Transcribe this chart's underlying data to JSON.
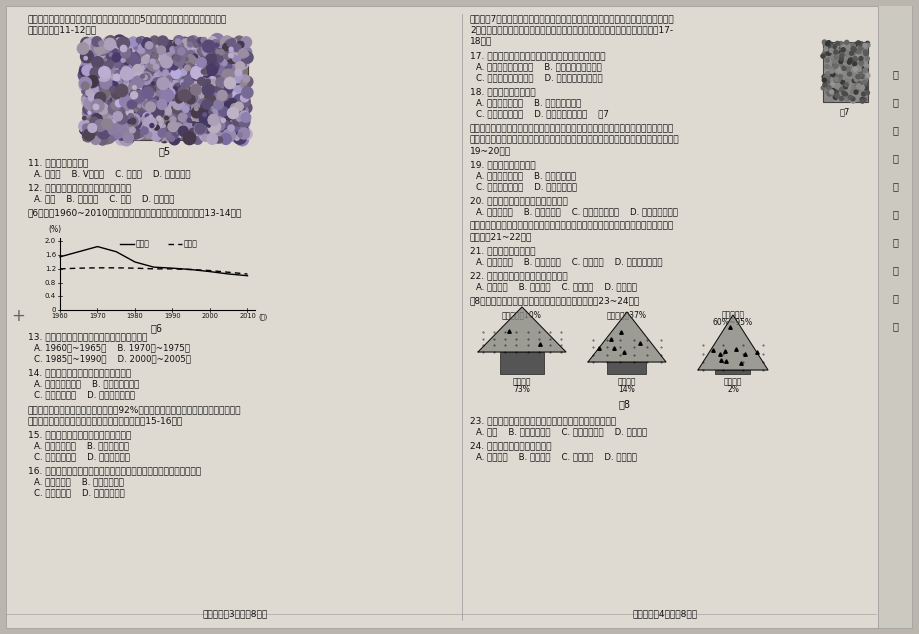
{
  "page_bg": "#d8d4cc",
  "paper_bg": "#e8e4dc",
  "text_color": "#2a2a2a",
  "left_column": {
    "top_text": [
      "野外考察是发现和解决地理问题的重要方法。图5为某同学野外考察中拍摄的岩石照",
      "片，请图完成11-12题。"
    ],
    "fig5_label": "图5",
    "q11": "11. 图示砾石滩多见于",
    "q11_options": [
      "A. 河源地    B. V型河谷    C. 河漫滩    D. 河流入海口"
    ],
    "q12": "12. 参与塑造砾石滩的水循环环节主要是",
    "q12_options": [
      "A. 降水    B. 地表径流    C. 下渗    D. 地下径流"
    ],
    "fig6_intro": "图6为某国1960~2010年人口出生率和死亡率变化图，读图完成13-14题。",
    "birth_rate_x": [
      1960,
      1965,
      1970,
      1975,
      1980,
      1985,
      1990,
      1995,
      2000,
      2005,
      2010
    ],
    "birth_rate_y": [
      1.55,
      1.7,
      1.85,
      1.7,
      1.4,
      1.25,
      1.22,
      1.18,
      1.12,
      1.05,
      1.0
    ],
    "death_rate_x": [
      1960,
      1965,
      1970,
      1975,
      1980,
      1985,
      1990,
      1995,
      2000,
      2005,
      2010
    ],
    "death_rate_y": [
      1.2,
      1.22,
      1.23,
      1.23,
      1.22,
      1.2,
      1.2,
      1.18,
      1.15,
      1.1,
      1.05
    ],
    "q13": "13. 下列时段中，该国人口自然增长率最高的是",
    "q13_options": [
      "A. 1960年~1965年    B. 1970年~1975年",
      "C. 1985年~1990年    D. 2000年~2005年"
    ],
    "q14": "14. 近年来，该国面临的主要人口问题是",
    "q14_options": [
      "A. 人口就业压力大    B. 城市人口比重大",
      "C. 人口迁出量大    D. 人口老龄化严重"
    ],
    "thailand_text": [
      "泰国是世界天然橡胶主要生产国之一，92%的橡胶产品出口，中国和美国均是橡胶消费",
      "大国，每年都大量进口天然橡胶及制品，据此完成15-16题。"
    ],
    "q15": "15. 与美国相比，泰国种植橡胶的优势是",
    "q15_options": [
      "A. 地形平坦广阔    B. 种植技术先进",
      "C. 气候条件优越    D. 机械化水平高"
    ],
    "q16": "16. 相较于销往美国，泰国橡胶加工企业将产品销往中国的优势条件是",
    "q16_options": [
      "A. 运输成本低    B. 市场需求量大",
      "C. 市场售价高    D. 信息通达度高"
    ],
    "footer": "地理试卷第3页（兲8页）"
  },
  "right_column": {
    "top_text": [
      "香橼（图7）口感独特，具有一定的食疗价值。产于官川火山深处某乡的红香橼，每年",
      "2月抢鲜登陆北京市场，新鲜香橼保鲜期短，加工后可供售一年以上。据此完成17-",
      "18题。"
    ],
    "q17": "17. 某乡红香橼抢鲜登陆北京市场，主要的运输方式是",
    "q17_options": [
      "A. 公路运输和馓路运输    B. 公路运输和航空运输",
      "C. 水路运输和公路运输    D. 水路运输和馓路运输"
    ],
    "q18": "18. 红香橼加工企业属于",
    "q18_options": [
      "A. 原料导向型工业    B. 技术导向型工业",
      "C. 市场导向型工业    D. 劳动力导向型工业    图7"
    ],
    "huawei_text": [
      "华为是我国一家研发和生产高科技电信和电子产品的世界级企业。华为中国研究所分布",
      "在北京、上海、杭州、广州、南京、武汉、西安、成都、重庆和苏州十个城市。据此完成",
      "19~20题。"
    ],
    "q19": "19. 华为电子产品特征是",
    "q19_options": [
      "A. 更新换代周期长    B. 原料消耗量大",
      "C. 研发费用占比高    D. 体积大运费高"
    ],
    "q20": "20. 华为中国研究所分布最多的地区是",
    "q20_options": [
      "A. 辽中南地区    B. 京津冀地区    C. 长江三角洲地区    D. 珠江三角洲地区"
    ],
    "reserve_text": [
      "在濮危野生动植物国际保护公约大会上，与各国家一致同意全面禁止穿山甲国际贸易。",
      "据此完成21~22题。"
    ],
    "q21": "21. 穿山甲濮临灭绝导致",
    "q21_options": [
      "A. 植被被破坏    B. 土地荒漠化    C. 水体污染    D. 生物多样性减少"
    ],
    "q22": "22. 保护穿山甲体现的人地关系思想是",
    "q22_options": [
      "A. 崇拜自然    B. 改造自然    C. 征服自然    D. 人地协调"
    ],
    "fig8_intro": "图8示意森林覆盖率与表土流失程度的关系。读图完成23~24题。",
    "fig8_labels": [
      "森林覆盖率10%",
      "森林覆盖率37%",
      "森林覆盖率\n60%~95%"
    ],
    "fig8_soil_loss": [
      "表土流失\n73%",
      "表土流失\n14%",
      "表土流失\n2%"
    ],
    "q23": "23. 获取区域森林覆盖状况，所利用的主要地理信息技术是",
    "q23_options": [
      "A. 遥感    B. 全球定位系统    C. 地理信息系统    D. 数字地球"
    ],
    "q24": "24. 图中示意的森林环境效益是",
    "q24_options": [
      "A. 防风固沙    B. 保持水土    C. 净化空气    D. 调节气候"
    ],
    "footer": "地理试卷第4页（兲8页）"
  },
  "right_sidebar": [
    "密",
    "封",
    "装",
    "订",
    "线",
    "内",
    "不",
    "要",
    "答",
    "题"
  ],
  "left_margin_mark": "+"
}
